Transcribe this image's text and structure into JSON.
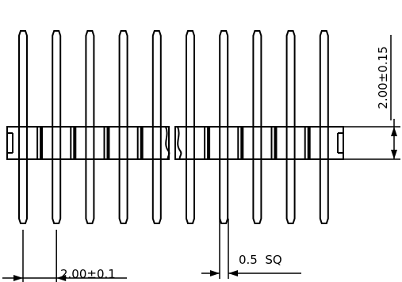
{
  "drawing": {
    "line_color": "#000000",
    "background_color": "#ffffff",
    "pin_count": 10,
    "dimensions": {
      "body_height": "2.00±0.15",
      "pitch": "2.00±0.1",
      "pin_size": "0.5  SQ"
    }
  }
}
